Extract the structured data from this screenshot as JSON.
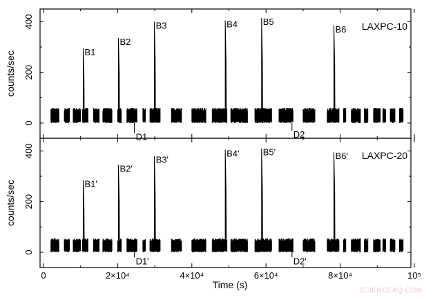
{
  "chart_data": [
    {
      "type": "line",
      "title": "",
      "panel_label": "LAXPC-10",
      "xlabel": "Time (s)",
      "ylabel": "counts/sec",
      "xlim": [
        0,
        100000
      ],
      "ylim": [
        -60,
        450
      ],
      "yticks": [
        0,
        200,
        400
      ],
      "xticks": [
        0,
        20000,
        40000,
        60000,
        80000,
        100000
      ],
      "grid": false,
      "baseline_level": 25,
      "baseline_noise": [
        0,
        60
      ],
      "bursts": [
        {
          "label": "B1",
          "time": 10700,
          "peak": 295
        },
        {
          "label": "B2",
          "time": 20200,
          "peak": 335
        },
        {
          "label": "B3",
          "time": 29900,
          "peak": 400
        },
        {
          "label": "B4",
          "time": 49000,
          "peak": 405
        },
        {
          "label": "B5",
          "time": 58800,
          "peak": 415
        },
        {
          "label": "B6",
          "time": 78300,
          "peak": 385
        }
      ],
      "dips": [
        {
          "label": "D1",
          "time": 24500,
          "value": -40
        },
        {
          "label": "D2",
          "time": 67000,
          "value": -30
        }
      ]
    },
    {
      "type": "line",
      "title": "",
      "panel_label": "LAXPC-20",
      "xlabel": "Time (s)",
      "ylabel": "counts/sec",
      "xlim": [
        0,
        100000
      ],
      "ylim": [
        -60,
        450
      ],
      "yticks": [
        0,
        200,
        400
      ],
      "xticks": [
        0,
        20000,
        40000,
        60000,
        80000,
        100000
      ],
      "grid": false,
      "baseline_level": 25,
      "baseline_noise": [
        0,
        55
      ],
      "bursts": [
        {
          "label": "B1'",
          "time": 10700,
          "peak": 285
        },
        {
          "label": "B2'",
          "time": 20200,
          "peak": 345
        },
        {
          "label": "B3'",
          "time": 29900,
          "peak": 380
        },
        {
          "label": "B4'",
          "time": 49000,
          "peak": 405
        },
        {
          "label": "B5'",
          "time": 58800,
          "peak": 410
        },
        {
          "label": "B6'",
          "time": 78300,
          "peak": 395
        }
      ],
      "dips": [
        {
          "label": "D1'",
          "time": 24500,
          "value": -20
        },
        {
          "label": "D2'",
          "time": 67000,
          "value": -20
        }
      ]
    }
  ],
  "axes": {
    "ylabel": "counts/sec",
    "xlabel": "Time (s)",
    "ytick_labels": [
      "0",
      "200",
      "400"
    ],
    "xtick_labels": [
      "0",
      "2×10⁴",
      "4×10⁴",
      "6×10⁴",
      "8×10⁴",
      "10⁵"
    ]
  },
  "segments": [
    [
      2000,
      4200
    ],
    [
      5600,
      7000
    ],
    [
      8000,
      10000
    ],
    [
      10500,
      12000
    ],
    [
      13500,
      15000
    ],
    [
      16000,
      18500
    ],
    [
      20000,
      21000
    ],
    [
      22500,
      25200
    ],
    [
      26800,
      27500
    ],
    [
      28700,
      31500
    ],
    [
      34500,
      37200
    ],
    [
      40000,
      43800
    ],
    [
      45500,
      49500
    ],
    [
      50500,
      55000
    ],
    [
      57000,
      61500
    ],
    [
      63500,
      67300
    ],
    [
      70000,
      73200
    ],
    [
      76500,
      79700
    ],
    [
      80900,
      81500
    ],
    [
      83000,
      85500
    ],
    [
      86500,
      87500
    ],
    [
      89000,
      90800
    ],
    [
      91500,
      92300
    ],
    [
      93500,
      94800
    ],
    [
      96000,
      97000
    ]
  ],
  "watermark": "SCIENCEAQ.COM"
}
